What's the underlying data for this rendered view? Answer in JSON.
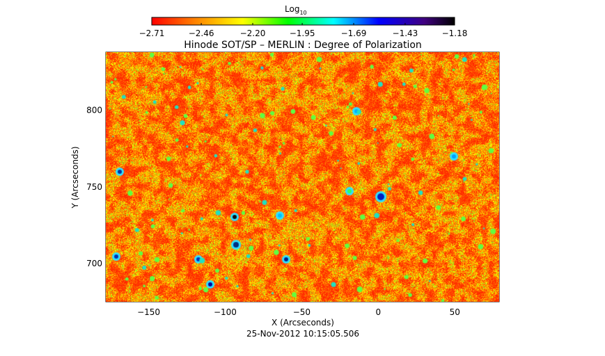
{
  "chart_data": {
    "type": "heatmap",
    "title": "Hinode SOT/SP – MERLIN : Degree of Polarization",
    "xlabel": "X (Arcseconds)",
    "ylabel": "Y (Arcseconds)",
    "timestamp": "25-Nov-2012 10:15:05.506",
    "xlim": [
      -178,
      79
    ],
    "ylim": [
      675,
      838
    ],
    "x_ticks": [
      -150,
      -100,
      -50,
      0,
      50
    ],
    "x_tick_labels": [
      "−150",
      "−100",
      "−50",
      "0",
      "50"
    ],
    "y_ticks": [
      700,
      750,
      800
    ],
    "y_tick_labels": [
      "700",
      "750",
      "800"
    ],
    "colorbar": {
      "label_main": "Log",
      "label_sub": "10",
      "min": -2.71,
      "max": -1.18,
      "ticks": [
        -2.71,
        -2.46,
        -2.2,
        -1.95,
        -1.69,
        -1.43,
        -1.18
      ],
      "tick_labels": [
        "−2.71",
        "−2.46",
        "−2.20",
        "−1.95",
        "−1.69",
        "−1.43",
        "−1.18"
      ],
      "colors": [
        "#ff0000",
        "#ff8000",
        "#ffff00",
        "#00ff00",
        "#00ffff",
        "#0000ff",
        "#400080",
        "#000000"
      ]
    },
    "grid": false
  }
}
